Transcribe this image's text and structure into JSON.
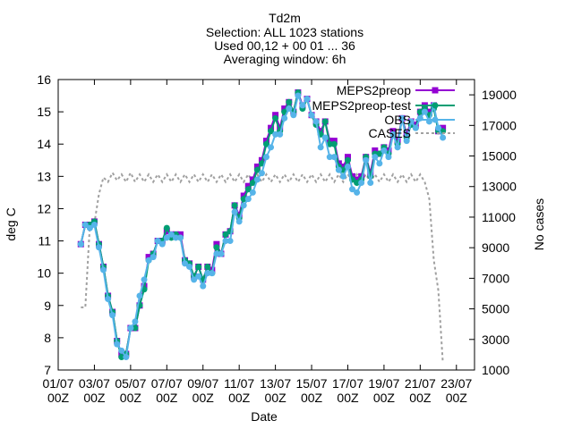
{
  "chart_data": {
    "type": "line",
    "title_lines": [
      "Td2m",
      "Selection: ALL    1023 stations",
      "Used 00,12 + 00 01 ... 36",
      "Averaging window:  6h"
    ],
    "xlabel": "Date",
    "ylabel": "deg C",
    "y2label": "No cases",
    "x_tick_labels": [
      [
        "01/07",
        "00Z"
      ],
      [
        "03/07",
        "00Z"
      ],
      [
        "05/07",
        "00Z"
      ],
      [
        "07/07",
        "00Z"
      ],
      [
        "09/07",
        "00Z"
      ],
      [
        "11/07",
        "00Z"
      ],
      [
        "13/07",
        "00Z"
      ],
      [
        "15/07",
        "00Z"
      ],
      [
        "17/07",
        "00Z"
      ],
      [
        "19/07",
        "00Z"
      ],
      [
        "21/07",
        "00Z"
      ],
      [
        "23/07",
        "00Z"
      ]
    ],
    "xlim_days": [
      1,
      24
    ],
    "ylim": [
      7,
      16
    ],
    "y_ticks": [
      7,
      8,
      9,
      10,
      11,
      12,
      13,
      14,
      15,
      16
    ],
    "y2lim": [
      1000,
      20000
    ],
    "y2_ticks": [
      1000,
      3000,
      5000,
      7000,
      9000,
      11000,
      13000,
      15000,
      17000,
      19000
    ],
    "legend_position": "top-right",
    "x_day": [
      2.25,
      2.5,
      2.75,
      3,
      3.25,
      3.5,
      3.75,
      4,
      4.25,
      4.5,
      4.75,
      5,
      5.25,
      5.5,
      5.75,
      6,
      6.25,
      6.5,
      6.75,
      7,
      7.25,
      7.5,
      7.75,
      8,
      8.25,
      8.5,
      8.75,
      9,
      9.25,
      9.5,
      9.75,
      10,
      10.25,
      10.5,
      10.75,
      11,
      11.25,
      11.5,
      11.75,
      12,
      12.25,
      12.5,
      12.75,
      13,
      13.25,
      13.5,
      13.75,
      14,
      14.25,
      14.5,
      14.75,
      15,
      15.25,
      15.5,
      15.75,
      16,
      16.25,
      16.5,
      16.75,
      17,
      17.25,
      17.5,
      17.75,
      18,
      18.25,
      18.5,
      18.75,
      19,
      19.25,
      19.5,
      19.75,
      20,
      20.25,
      20.5,
      20.75,
      21,
      21.25,
      21.5,
      21.75,
      22,
      22.25
    ],
    "series": [
      {
        "name": "MEPS2preop",
        "color": "#9400d3",
        "marker": "filled-square",
        "values": [
          10.9,
          11.5,
          11.5,
          11.6,
          10.9,
          10.2,
          9.3,
          8.8,
          7.9,
          7.5,
          7.5,
          8.3,
          8.3,
          9.0,
          9.6,
          10.5,
          10.6,
          11.0,
          11.0,
          11.3,
          11.2,
          11.2,
          11.2,
          10.4,
          10.3,
          9.9,
          10.2,
          9.8,
          10.2,
          10.1,
          10.9,
          10.6,
          11.2,
          11.3,
          12.1,
          11.8,
          12.4,
          12.7,
          12.9,
          13.3,
          13.5,
          14.1,
          14.5,
          14.9,
          14.5,
          15.1,
          15.3,
          15.0,
          15.6,
          15.2,
          15.4,
          14.9,
          14.7,
          14.4,
          14.7,
          14.1,
          14.1,
          13.4,
          13.3,
          13.6,
          13.0,
          12.9,
          13.0,
          13.6,
          13.1,
          13.8,
          13.7,
          13.9,
          13.8,
          14.4,
          14.1,
          14.8,
          14.3,
          14.7,
          14.6,
          15.0,
          15.2,
          15.0,
          15.2,
          14.4,
          14.5
        ]
      },
      {
        "name": "MEPS2preop-test",
        "color": "#009e73",
        "marker": "filled-circle",
        "values": [
          10.9,
          11.5,
          11.5,
          11.6,
          10.9,
          10.2,
          9.3,
          8.8,
          7.9,
          7.4,
          7.5,
          8.3,
          8.3,
          9.0,
          9.5,
          10.4,
          10.6,
          11.0,
          11.0,
          11.4,
          11.1,
          11.2,
          11.1,
          10.4,
          10.3,
          9.9,
          10.2,
          9.8,
          10.2,
          10.0,
          10.8,
          10.6,
          11.2,
          11.3,
          12.1,
          11.7,
          12.3,
          12.6,
          12.8,
          13.2,
          13.4,
          14.0,
          14.4,
          14.8,
          14.4,
          15.0,
          15.3,
          15.0,
          15.6,
          15.1,
          15.4,
          14.9,
          14.6,
          14.3,
          14.7,
          14.0,
          14.0,
          13.3,
          13.2,
          13.5,
          12.9,
          12.8,
          12.9,
          13.6,
          13.0,
          13.7,
          13.7,
          13.9,
          13.7,
          14.3,
          14.0,
          14.8,
          14.2,
          14.6,
          14.5,
          15.0,
          15.1,
          14.9,
          15.1,
          14.4,
          14.4
        ]
      },
      {
        "name": "OBS",
        "color": "#56b4e9",
        "marker": "filled-circle",
        "values": [
          10.9,
          11.5,
          11.4,
          11.5,
          10.8,
          10.1,
          9.2,
          8.7,
          7.8,
          7.6,
          7.4,
          8.3,
          8.5,
          9.3,
          9.8,
          10.4,
          10.5,
          11.0,
          10.9,
          11.1,
          11.2,
          11.1,
          11.1,
          10.3,
          10.2,
          9.8,
          9.9,
          9.6,
          10.0,
          10.0,
          10.6,
          10.6,
          11.0,
          11.0,
          11.9,
          11.6,
          12.1,
          12.3,
          12.5,
          12.9,
          13.1,
          13.6,
          13.9,
          14.3,
          14.3,
          14.8,
          15.1,
          14.9,
          15.5,
          15.2,
          15.4,
          14.9,
          14.7,
          13.9,
          14.2,
          13.6,
          13.6,
          13.2,
          13.0,
          13.3,
          12.6,
          12.5,
          12.8,
          13.5,
          12.8,
          13.6,
          13.4,
          13.8,
          13.6,
          14.3,
          13.9,
          14.8,
          14.1,
          14.7,
          14.5,
          14.8,
          15.0,
          14.7,
          15.2,
          14.5,
          14.2
        ]
      },
      {
        "name": "CASES",
        "color": "#a0a0a0",
        "axis": "right",
        "values": [
          5100,
          5100,
          10500,
          10600,
          12500,
          13600,
          13300,
          13900,
          13400,
          13800,
          13300,
          13900,
          13300,
          13800,
          13300,
          13800,
          13300,
          13800,
          13300,
          13800,
          13300,
          13800,
          13300,
          13800,
          13300,
          13800,
          13300,
          13800,
          13300,
          13800,
          13300,
          13800,
          13300,
          13800,
          13300,
          13800,
          13300,
          13800,
          13300,
          13800,
          13300,
          13800,
          13300,
          13800,
          13300,
          13800,
          13300,
          13800,
          13300,
          13800,
          13300,
          13800,
          13300,
          13800,
          13300,
          13800,
          13300,
          13800,
          13300,
          13800,
          13300,
          13800,
          13300,
          13800,
          13300,
          13800,
          13300,
          13800,
          13300,
          13800,
          13300,
          13800,
          13300,
          13800,
          13300,
          13800,
          13300,
          12200,
          8200,
          6200,
          1500
        ]
      }
    ]
  }
}
